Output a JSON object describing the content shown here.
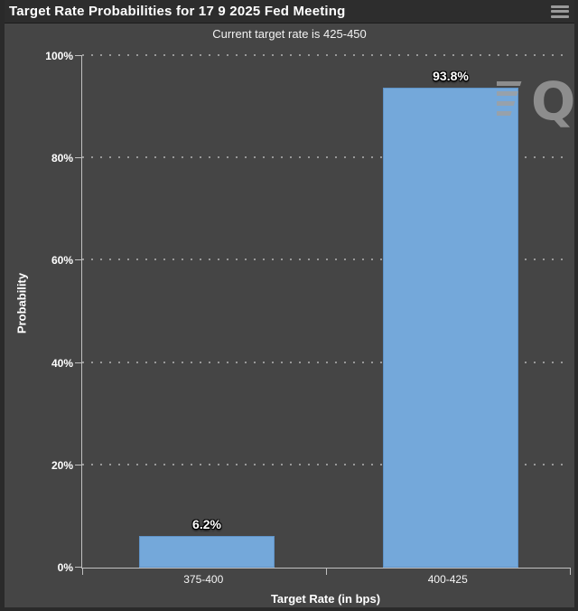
{
  "window": {
    "title": "Target Rate Probabilities for 17 9 2025 Fed Meeting"
  },
  "subtitle": "Current target rate is 425-450",
  "watermark_letter": "Q",
  "chart_data": {
    "type": "bar",
    "title": "Target Rate Probabilities for 17 9 2025 Fed Meeting",
    "subtitle": "Current target rate is 425-450",
    "xlabel": "Target Rate (in bps)",
    "ylabel": "Probability",
    "categories": [
      "375-400",
      "400-425"
    ],
    "values": [
      6.2,
      93.8
    ],
    "value_labels": [
      "6.2%",
      "93.8%"
    ],
    "ylim": [
      0,
      100
    ],
    "ytick_labels": [
      "0%",
      "20%",
      "40%",
      "60%",
      "80%",
      "100%"
    ],
    "grid": "horizontal-dotted-every-20",
    "legend": "none",
    "bar_color": "#74a8da",
    "background_color": "#454545",
    "title_bar_color": "#2d2d2d",
    "text_color": "#ffffff"
  }
}
